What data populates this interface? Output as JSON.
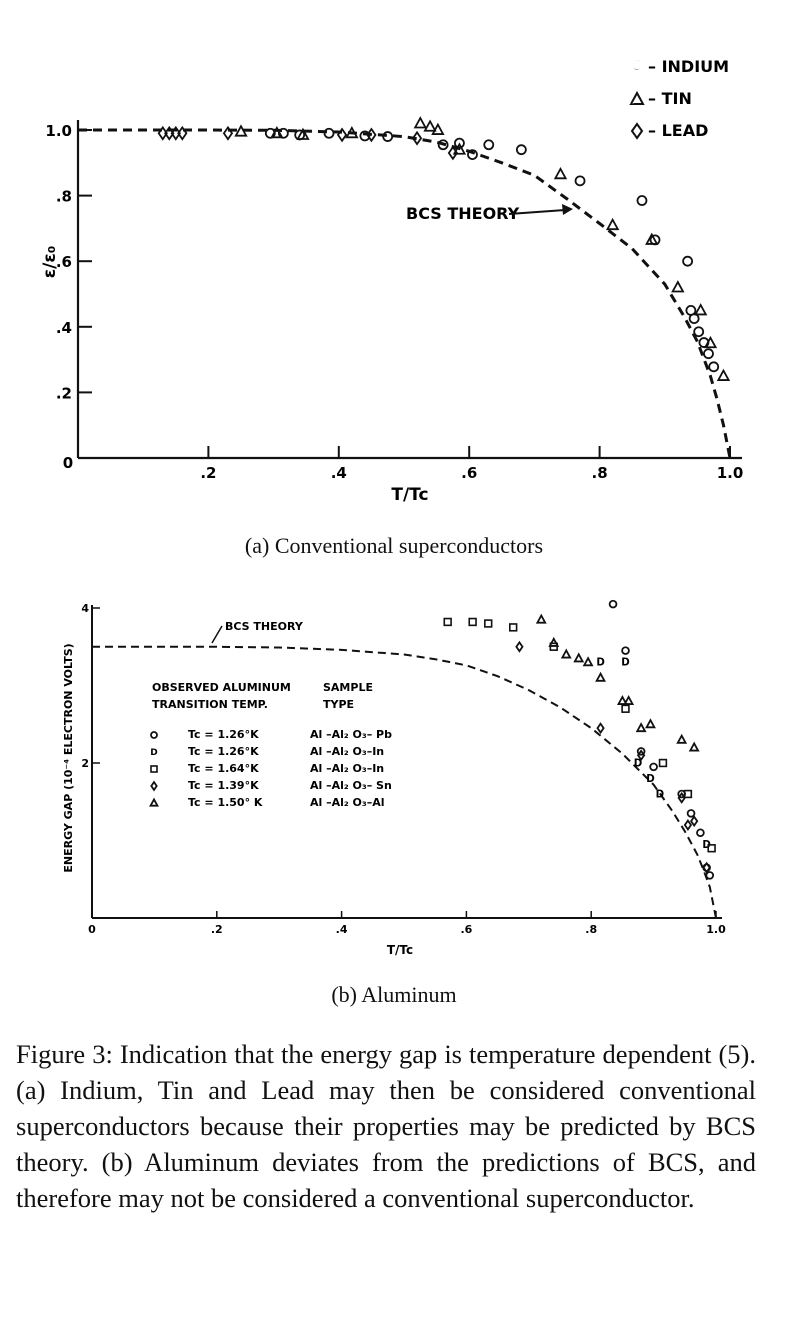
{
  "chart_data": [
    {
      "type": "scatter",
      "xlabel": "T/Tc",
      "ylabel": "ε/ε₀",
      "xlim": [
        0,
        1.0
      ],
      "ylim": [
        0,
        1.0
      ],
      "x_ticks": [
        ".2",
        ".4",
        ".6",
        ".8",
        "1.0"
      ],
      "x_origin_label": "0",
      "y_ticks": [
        "1.0",
        ".8",
        ".6",
        ".4",
        ".2"
      ],
      "legend_position": "top-right",
      "legend": [
        {
          "marker": "circle",
          "label": "O – INDIUM"
        },
        {
          "marker": "triangle",
          "label": "Δ – TIN"
        },
        {
          "marker": "diamond",
          "label": "◊ – LEAD"
        }
      ],
      "annotation": "BCS THEORY",
      "annotation_point": [
        0.76,
        0.76
      ],
      "curve": {
        "name": "BCS THEORY",
        "style": "dashed",
        "x": [
          0,
          0.1,
          0.2,
          0.3,
          0.4,
          0.5,
          0.55,
          0.6,
          0.65,
          0.7,
          0.75,
          0.8,
          0.85,
          0.9,
          0.93,
          0.95,
          0.97,
          0.98,
          0.99,
          1.0
        ],
        "y": [
          1.0,
          1.0,
          1.0,
          0.999,
          0.994,
          0.98,
          0.963,
          0.935,
          0.9,
          0.862,
          0.79,
          0.715,
          0.638,
          0.53,
          0.43,
          0.355,
          0.25,
          0.18,
          0.1,
          0.0
        ]
      },
      "series": [
        {
          "name": "INDIUM",
          "marker": "circle",
          "x": [
            0.295,
            0.315,
            0.34,
            0.385,
            0.44,
            0.475,
            0.56,
            0.585,
            0.605,
            0.63,
            0.68,
            0.77,
            0.865,
            0.885,
            0.935,
            0.94,
            0.945,
            0.952,
            0.96,
            0.967,
            0.975
          ],
          "y": [
            0.99,
            0.99,
            0.985,
            0.99,
            0.982,
            0.98,
            0.955,
            0.96,
            0.925,
            0.955,
            0.94,
            0.845,
            0.785,
            0.665,
            0.6,
            0.45,
            0.425,
            0.385,
            0.352,
            0.318,
            0.278
          ]
        },
        {
          "name": "TIN",
          "marker": "triangle",
          "x": [
            0.25,
            0.305,
            0.345,
            0.42,
            0.525,
            0.54,
            0.552,
            0.585,
            0.74,
            0.82,
            0.88,
            0.92,
            0.955,
            0.97,
            0.99
          ],
          "y": [
            0.995,
            0.99,
            0.985,
            0.99,
            1.02,
            1.01,
            1.0,
            0.94,
            0.865,
            0.71,
            0.665,
            0.52,
            0.45,
            0.35,
            0.25
          ]
        },
        {
          "name": "LEAD",
          "marker": "diamond",
          "x": [
            0.13,
            0.14,
            0.15,
            0.16,
            0.23,
            0.405,
            0.45,
            0.52,
            0.575
          ],
          "y": [
            0.99,
            0.99,
            0.99,
            0.99,
            0.99,
            0.985,
            0.985,
            0.975,
            0.93
          ]
        }
      ]
    },
    {
      "type": "scatter",
      "xlabel": "T/Tc",
      "ylabel": "ENERGY GAP (10⁻⁴ ELECTRON VOLTS)",
      "xlim": [
        0,
        1.0
      ],
      "ylim": [
        0,
        4
      ],
      "x_ticks": [
        "0",
        ".2",
        ".4",
        ".6",
        ".8",
        "1.0"
      ],
      "y_ticks": [
        "4",
        "2"
      ],
      "annotation": "BCS THEORY",
      "annotation_point": [
        0.195,
        3.52
      ],
      "legend_position": "left",
      "legend_title_1": [
        "OBSERVED ALUMINUM",
        "TRANSITION TEMP."
      ],
      "legend_title_2": [
        "SAMPLE",
        "TYPE"
      ],
      "legend": [
        {
          "marker": "circle",
          "tc": "Tc = 1.26°K",
          "type": "Al –Al₂ O₃– Pb"
        },
        {
          "marker": "D",
          "tc": "Tc = 1.26°K",
          "type": "Al –Al₂ O₃–In"
        },
        {
          "marker": "square",
          "tc": "Tc = 1.64°K",
          "type": "Al –Al₂ O₃–In"
        },
        {
          "marker": "diamond",
          "tc": "Tc = 1.39°K",
          "type": "Al –Al₂ O₃– Sn"
        },
        {
          "marker": "triangle",
          "tc": "Tc = 1.50° K",
          "type": "Al –Al₂ O₃–Al"
        }
      ],
      "curve": {
        "name": "BCS THEORY",
        "style": "dashed",
        "x": [
          0,
          0.1,
          0.2,
          0.3,
          0.4,
          0.5,
          0.55,
          0.6,
          0.65,
          0.7,
          0.75,
          0.8,
          0.85,
          0.9,
          0.93,
          0.95,
          0.97,
          0.98,
          0.99,
          1.0
        ],
        "y": [
          3.5,
          3.5,
          3.5,
          3.49,
          3.46,
          3.4,
          3.34,
          3.26,
          3.12,
          2.94,
          2.72,
          2.45,
          2.12,
          1.72,
          1.38,
          1.12,
          0.82,
          0.62,
          0.4,
          0.0
        ]
      },
      "series": [
        {
          "name": "Al-Al2O3-Pb (Tc = 1.26°K)",
          "marker": "circle",
          "x": [
            0.835,
            0.855,
            0.88,
            0.9,
            0.945,
            0.96,
            0.975,
            0.985,
            0.99
          ],
          "y": [
            4.05,
            3.45,
            2.15,
            1.95,
            1.6,
            1.35,
            1.1,
            0.65,
            0.55
          ]
        },
        {
          "name": "Al-Al2O3-In (Tc = 1.26°K)",
          "marker": "D",
          "x": [
            0.815,
            0.855,
            0.875,
            0.895,
            0.91,
            0.985
          ],
          "y": [
            3.3,
            3.3,
            2.0,
            1.8,
            1.6,
            0.95
          ]
        },
        {
          "name": "Al-Al2O3-In (Tc = 1.64°K)",
          "marker": "square",
          "x": [
            0.57,
            0.61,
            0.635,
            0.675,
            0.74,
            0.855,
            0.915,
            0.955,
            0.993
          ],
          "y": [
            3.82,
            3.82,
            3.8,
            3.75,
            3.5,
            2.7,
            2.0,
            1.6,
            0.9
          ]
        },
        {
          "name": "Al-Al2O3-Sn (Tc = 1.39°K)",
          "marker": "diamond",
          "x": [
            0.685,
            0.815,
            0.88,
            0.945,
            0.955,
            0.965,
            0.985
          ],
          "y": [
            3.5,
            2.45,
            2.1,
            1.55,
            1.2,
            1.25,
            0.65
          ]
        },
        {
          "name": "Al-Al2O3-Al (Tc = 1.50° K)",
          "marker": "triangle",
          "x": [
            0.72,
            0.74,
            0.76,
            0.78,
            0.795,
            0.815,
            0.85,
            0.86,
            0.88,
            0.895,
            0.945,
            0.965
          ],
          "y": [
            3.85,
            3.55,
            3.4,
            3.35,
            3.3,
            3.1,
            2.8,
            2.8,
            2.45,
            2.5,
            2.3,
            2.2
          ]
        }
      ]
    }
  ],
  "subcaption_a": "(a) Conventional superconductors",
  "subcaption_b": "(b) Aluminum",
  "caption": "Figure 3: Indication that the energy gap is temperature dependent (5). (a) Indium, Tin and Lead may then be considered conventional superconductors because their properties may be predicted by BCS theory. (b) Aluminum deviates from the predictions of BCS, and therefore may not be considered a conventional superconductor."
}
